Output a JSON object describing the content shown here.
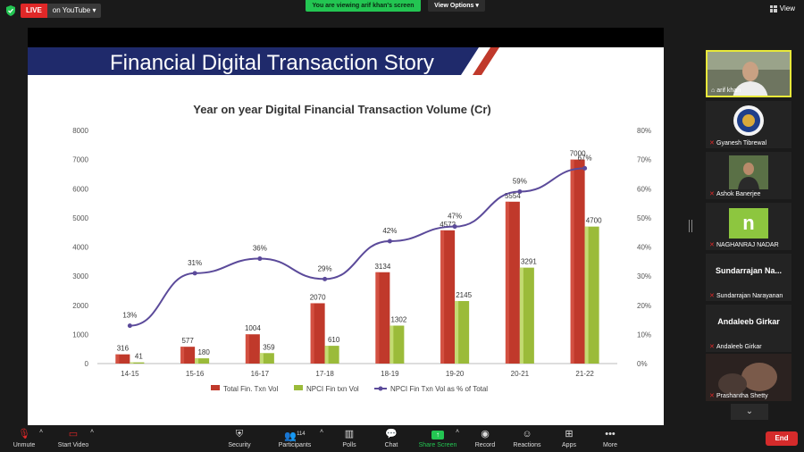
{
  "topbar": {
    "live_badge": "LIVE",
    "live_destination": "on YouTube",
    "viewing_banner": "You are viewing arif khan's screen",
    "view_options": "View Options",
    "view_button": "View"
  },
  "slide": {
    "title": "Financial Digital Transaction Story"
  },
  "chart_data": {
    "type": "bar",
    "title": "Year on year Digital Financial Transaction Volume (Cr)",
    "categories": [
      "14-15",
      "15-16",
      "16-17",
      "17-18",
      "18-19",
      "19-20",
      "20-21",
      "21-22"
    ],
    "series": [
      {
        "name": "Total Fin. Txn Vol",
        "type": "bar",
        "values": [
          316,
          577,
          1004,
          2070,
          3134,
          4572,
          5554,
          7000
        ],
        "color": "#c0392b"
      },
      {
        "name": "NPCI Fin txn Vol",
        "type": "bar",
        "values": [
          41,
          180,
          359,
          610,
          1302,
          2145,
          3291,
          4700
        ],
        "color": "#9bbb3a"
      },
      {
        "name": "NPCI Fin Txn Vol as % of Total",
        "type": "line",
        "axis": "right",
        "values": [
          13,
          31,
          36,
          29,
          42,
          47,
          59,
          67
        ],
        "color": "#5b4a9a"
      }
    ],
    "bar_labels": {
      "total": [
        "316",
        "577",
        "1004",
        "2070",
        "3134",
        "4572",
        "5554",
        "7000"
      ],
      "npci": [
        "41",
        "180",
        "359",
        "610",
        "1302",
        "2145",
        "3291",
        "4700"
      ],
      "pct": [
        "13%",
        "31%",
        "36%",
        "29%",
        "42%",
        "47%",
        "59%",
        "67%"
      ]
    },
    "ylim": [
      0,
      8000
    ],
    "yticks": [
      "0",
      "1000",
      "2000",
      "3000",
      "4000",
      "5000",
      "6000",
      "7000",
      "8000"
    ],
    "y2lim": [
      0,
      80
    ],
    "y2ticks": [
      "0%",
      "10%",
      "20%",
      "30%",
      "40%",
      "50%",
      "60%",
      "70%",
      "80%"
    ],
    "legend_position": "bottom",
    "grid": false
  },
  "participants": [
    {
      "name": "arif khan",
      "active": true
    },
    {
      "name": "Gyanesh Tibrewal"
    },
    {
      "name": "Ashok Banerjee"
    },
    {
      "name": "NAGHANRAJ NADAR",
      "avatar_letter": "n"
    },
    {
      "name": "Sundarrajan Narayanan",
      "display": "Sundarrajan Na..."
    },
    {
      "name": "Andaleeb Girkar",
      "display": "Andaleeb Girkar"
    },
    {
      "name": "Prashantha Shetty"
    }
  ],
  "toolbar": {
    "unmute": "Unmute",
    "start_video": "Start Video",
    "security": "Security",
    "participants": "Participants",
    "participants_count": "114",
    "polls": "Polls",
    "chat": "Chat",
    "share_screen": "Share Screen",
    "record": "Record",
    "reactions": "Reactions",
    "apps": "Apps",
    "more": "More",
    "end": "End"
  },
  "colors": {
    "share_green": "#23c552",
    "end_red": "#d52b2b",
    "live_red": "#e02828",
    "active_speaker": "#e8e83a"
  }
}
